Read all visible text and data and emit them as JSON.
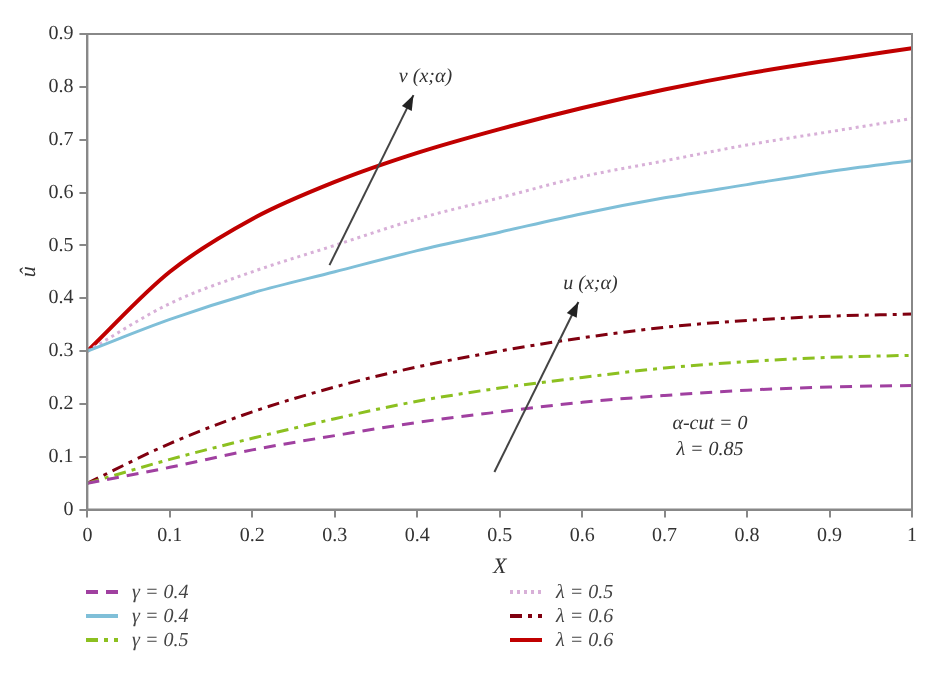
{
  "chart_data": {
    "type": "line",
    "xlabel": "X",
    "ylabel": "û",
    "x": [
      0,
      0.1,
      0.2,
      0.3,
      0.4,
      0.5,
      0.6,
      0.7,
      0.8,
      0.9,
      1
    ],
    "xlim": [
      0,
      1
    ],
    "xticks": [
      0,
      0.1,
      0.2,
      0.3,
      0.4,
      0.5,
      0.6,
      0.7,
      0.8,
      0.9,
      1
    ],
    "ylim": [
      0,
      0.9
    ],
    "yticks": [
      0,
      0.1,
      0.2,
      0.3,
      0.4,
      0.5,
      0.6,
      0.7,
      0.8,
      0.9
    ],
    "grid": false,
    "legend": "bottom",
    "marker": "none",
    "series": [
      {
        "name": "γ = 0.4",
        "color": "#a040a0",
        "line_style": "dashed",
        "values": [
          0.05,
          0.08,
          0.113,
          0.14,
          0.165,
          0.185,
          0.203,
          0.216,
          0.226,
          0.232,
          0.235
        ]
      },
      {
        "name": "γ = 0.4",
        "color": "#7fbfd8",
        "line_style": "solid",
        "values": [
          0.3,
          0.36,
          0.41,
          0.45,
          0.49,
          0.525,
          0.56,
          0.59,
          0.615,
          0.64,
          0.66
        ]
      },
      {
        "name": "γ = 0.5",
        "color": "#8cc020",
        "line_style": "dashdot",
        "values": [
          0.05,
          0.095,
          0.135,
          0.172,
          0.205,
          0.23,
          0.25,
          0.268,
          0.28,
          0.288,
          0.292
        ]
      },
      {
        "name": "λ = 0.5",
        "color": "#d8b0d8",
        "line_style": "dotted",
        "values": [
          0.3,
          0.39,
          0.45,
          0.5,
          0.55,
          0.59,
          0.63,
          0.66,
          0.69,
          0.715,
          0.74
        ]
      },
      {
        "name": "λ = 0.6",
        "color": "#800010",
        "line_style": "dashdot",
        "values": [
          0.05,
          0.125,
          0.185,
          0.232,
          0.27,
          0.3,
          0.325,
          0.345,
          0.358,
          0.366,
          0.37
        ]
      },
      {
        "name": "λ = 0.6",
        "color": "#c00000",
        "line_style": "solid",
        "values": [
          0.3,
          0.45,
          0.55,
          0.62,
          0.675,
          0.72,
          0.76,
          0.795,
          0.825,
          0.85,
          0.873
        ]
      }
    ],
    "annotations": [
      "v (x;α)",
      "u (x;α)",
      "α-cut = 0",
      "λ = 0.85"
    ]
  }
}
